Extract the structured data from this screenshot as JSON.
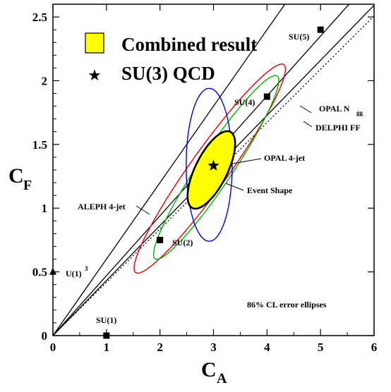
{
  "chart_data": {
    "type": "scatter",
    "xlabel": "C",
    "xlabel_sub": "A",
    "ylabel": "C",
    "ylabel_sub": "F",
    "xlim": [
      0,
      6
    ],
    "ylim": [
      0,
      2.6
    ],
    "x_ticks": [
      {
        "value": 0,
        "label": "0"
      },
      {
        "value": 1,
        "label": "1"
      },
      {
        "value": 2,
        "label": "2"
      },
      {
        "value": 3,
        "label": "3"
      },
      {
        "value": 4,
        "label": "4"
      },
      {
        "value": 5,
        "label": "5"
      },
      {
        "value": 6,
        "label": "6"
      }
    ],
    "y_ticks": [
      {
        "value": 0,
        "label": "0"
      },
      {
        "value": 0.5,
        "label": "0.5"
      },
      {
        "value": 1,
        "label": "1"
      },
      {
        "value": 1.5,
        "label": "1.5"
      },
      {
        "value": 2,
        "label": "2"
      },
      {
        "value": 2.5,
        "label": "2.5"
      }
    ],
    "legend": {
      "placement": "top-left",
      "items": [
        {
          "label": "Combined result",
          "symbol": "yellow-box"
        },
        {
          "label": "SU(3) QCD",
          "symbol": "star"
        }
      ]
    },
    "annotation": "86% CL error ellipses",
    "lines": [
      {
        "name": "OPAL N_gg",
        "style": "solid",
        "slope": 0.47
      },
      {
        "name": "steep band",
        "style": "solid",
        "slope": 0.6
      },
      {
        "name": "DELPHI FF",
        "style": "dotted",
        "slope": 0.418
      },
      {
        "name": "lower band",
        "style": "solid",
        "slope": 0.432
      }
    ],
    "ellipses": [
      {
        "name": "ALEPH 4-jet",
        "color": "#e00000",
        "cx": 2.93,
        "cy": 1.31,
        "a": 1.62,
        "b": 0.22,
        "angle_deg": 29.5,
        "fill": "none"
      },
      {
        "name": "Event Shape",
        "color": "#00b000",
        "cx": 3.05,
        "cy": 1.32,
        "a": 1.36,
        "b": 0.2,
        "angle_deg": 31,
        "fill": "none"
      },
      {
        "name": "OPAL 4-jet",
        "color": "#0000cc",
        "cx": 2.92,
        "cy": 1.34,
        "a": 0.43,
        "b": 0.6,
        "angle_deg": 0,
        "fill": "none"
      },
      {
        "name": "Combined result",
        "color": "#000000",
        "cx": 2.96,
        "cy": 1.3,
        "a": 0.5,
        "b": 0.2,
        "angle_deg": 30,
        "fill": "#ffff00"
      }
    ],
    "points": [
      {
        "label": "SU(1)",
        "x": 1,
        "y": 0,
        "marker": "square"
      },
      {
        "label": "SU(2)",
        "x": 2,
        "y": 0.75,
        "marker": "square"
      },
      {
        "label": "SU(4)",
        "x": 4,
        "y": 1.875,
        "marker": "square"
      },
      {
        "label": "SU(5)",
        "x": 5,
        "y": 2.4,
        "marker": "square"
      },
      {
        "label": "U(1)",
        "label_sup": "3",
        "x": 0,
        "y": 0.5,
        "marker": "triangle"
      },
      {
        "label": "SU(3) QCD",
        "x": 3,
        "y": 1.333,
        "marker": "star"
      }
    ],
    "line_labels": {
      "opal_ngg": "OPAL N",
      "opal_ngg_sub": "gg",
      "delphi_ff": "DELPHI FF",
      "opal_4jet": "OPAL 4-jet",
      "event_shape": "Event Shape",
      "aleph_4jet": "ALEPH 4-jet"
    }
  }
}
